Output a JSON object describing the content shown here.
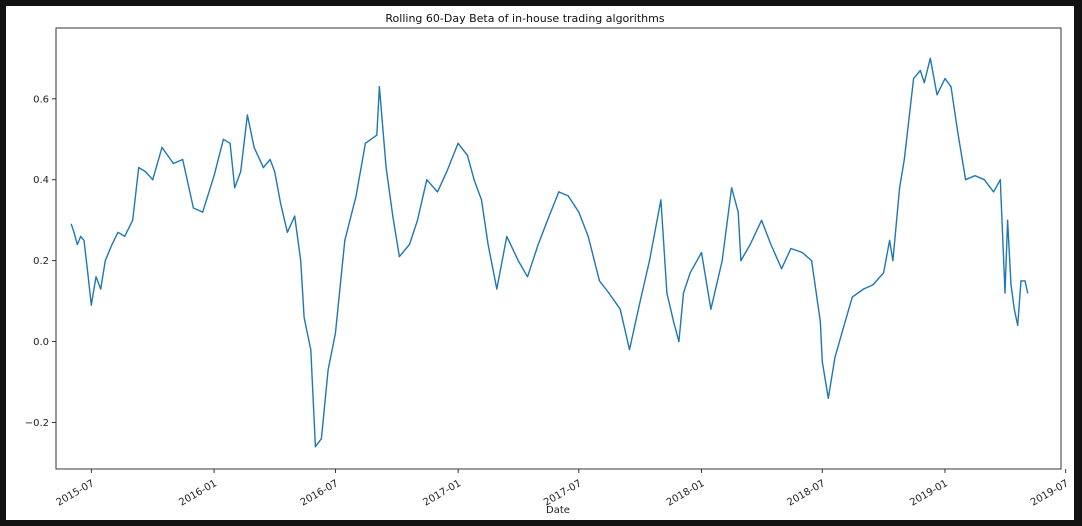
{
  "window": {
    "background": "#121212"
  },
  "chart_data": {
    "type": "line",
    "title": "Rolling 60-Day Beta of in-house trading algorithms",
    "xlabel": "Date",
    "ylabel": "",
    "grid": false,
    "legend": "none",
    "line_color": "#1f77b4",
    "xlim": [
      "2015-05-09",
      "2019-06-24"
    ],
    "ylim": [
      -0.315,
      0.775
    ],
    "x_ticks": [
      "2015-07",
      "2016-01",
      "2016-07",
      "2017-01",
      "2017-07",
      "2018-01",
      "2018-07",
      "2019-01",
      "2019-07"
    ],
    "y_ticks": [
      -0.2,
      0.0,
      0.2,
      0.4,
      0.6
    ],
    "y_tick_labels": [
      "−0.2",
      "0.0",
      "0.2",
      "0.4",
      "0.6"
    ],
    "series": [
      {
        "x": [
          "2015-06-01",
          "2015-06-05",
          "2015-06-10",
          "2015-06-15",
          "2015-06-20",
          "2015-06-25",
          "2015-07-01",
          "2015-07-08",
          "2015-07-15",
          "2015-07-22",
          "2015-08-01",
          "2015-08-10",
          "2015-08-20",
          "2015-09-01",
          "2015-09-10",
          "2015-09-20",
          "2015-10-01",
          "2015-10-15",
          "2015-11-01",
          "2015-11-15",
          "2015-12-01",
          "2015-12-15",
          "2016-01-01",
          "2016-01-15",
          "2016-01-25",
          "2016-02-01",
          "2016-02-10",
          "2016-02-20",
          "2016-03-01",
          "2016-03-15",
          "2016-03-25",
          "2016-04-01",
          "2016-04-10",
          "2016-04-20",
          "2016-05-01",
          "2016-05-10",
          "2016-05-15",
          "2016-05-20",
          "2016-05-25",
          "2016-06-01",
          "2016-06-10",
          "2016-06-20",
          "2016-07-01",
          "2016-07-15",
          "2016-08-01",
          "2016-08-15",
          "2016-09-01",
          "2016-09-05",
          "2016-09-15",
          "2016-09-25",
          "2016-10-05",
          "2016-10-20",
          "2016-11-01",
          "2016-11-15",
          "2016-12-01",
          "2016-12-15",
          "2017-01-01",
          "2017-01-15",
          "2017-01-25",
          "2017-02-05",
          "2017-02-15",
          "2017-02-28",
          "2017-03-15",
          "2017-04-01",
          "2017-04-15",
          "2017-05-01",
          "2017-05-15",
          "2017-06-01",
          "2017-06-15",
          "2017-07-01",
          "2017-07-15",
          "2017-08-01",
          "2017-08-15",
          "2017-09-01",
          "2017-09-15",
          "2017-10-01",
          "2017-10-15",
          "2017-11-01",
          "2017-11-10",
          "2017-11-20",
          "2017-11-28",
          "2017-12-05",
          "2017-12-15",
          "2018-01-01",
          "2018-01-15",
          "2018-02-01",
          "2018-02-15",
          "2018-02-25",
          "2018-03-01",
          "2018-03-15",
          "2018-04-01",
          "2018-04-15",
          "2018-05-01",
          "2018-05-15",
          "2018-06-01",
          "2018-06-15",
          "2018-06-28",
          "2018-07-01",
          "2018-07-10",
          "2018-07-20",
          "2018-08-01",
          "2018-08-15",
          "2018-09-01",
          "2018-09-15",
          "2018-10-01",
          "2018-10-10",
          "2018-10-15",
          "2018-10-25",
          "2018-11-01",
          "2018-11-15",
          "2018-11-25",
          "2018-12-01",
          "2018-12-10",
          "2018-12-20",
          "2019-01-01",
          "2019-01-10",
          "2019-01-20",
          "2019-02-01",
          "2019-02-15",
          "2019-03-01",
          "2019-03-15",
          "2019-03-25",
          "2019-04-01",
          "2019-04-05",
          "2019-04-10",
          "2019-04-15",
          "2019-04-20",
          "2019-04-25",
          "2019-05-01",
          "2019-05-05"
        ],
        "y": [
          0.29,
          0.27,
          0.24,
          0.26,
          0.25,
          0.18,
          0.09,
          0.16,
          0.13,
          0.2,
          0.24,
          0.27,
          0.26,
          0.3,
          0.43,
          0.42,
          0.4,
          0.48,
          0.44,
          0.45,
          0.33,
          0.32,
          0.41,
          0.5,
          0.49,
          0.38,
          0.42,
          0.56,
          0.48,
          0.43,
          0.45,
          0.42,
          0.34,
          0.27,
          0.31,
          0.2,
          0.06,
          0.02,
          -0.02,
          -0.26,
          -0.24,
          -0.07,
          0.02,
          0.25,
          0.36,
          0.49,
          0.51,
          0.63,
          0.43,
          0.31,
          0.21,
          0.24,
          0.3,
          0.4,
          0.37,
          0.42,
          0.49,
          0.46,
          0.4,
          0.35,
          0.24,
          0.13,
          0.26,
          0.2,
          0.16,
          0.24,
          0.3,
          0.37,
          0.36,
          0.32,
          0.26,
          0.15,
          0.12,
          0.08,
          -0.02,
          0.1,
          0.2,
          0.35,
          0.12,
          0.05,
          0.0,
          0.12,
          0.17,
          0.22,
          0.08,
          0.2,
          0.38,
          0.32,
          0.2,
          0.24,
          0.3,
          0.24,
          0.18,
          0.23,
          0.22,
          0.2,
          0.05,
          -0.05,
          -0.14,
          -0.04,
          0.03,
          0.11,
          0.13,
          0.14,
          0.17,
          0.25,
          0.2,
          0.38,
          0.45,
          0.65,
          0.67,
          0.64,
          0.7,
          0.61,
          0.65,
          0.63,
          0.52,
          0.4,
          0.41,
          0.4,
          0.37,
          0.4,
          0.12,
          0.3,
          0.14,
          0.08,
          0.04,
          0.15,
          0.15,
          0.12
        ]
      }
    ]
  }
}
